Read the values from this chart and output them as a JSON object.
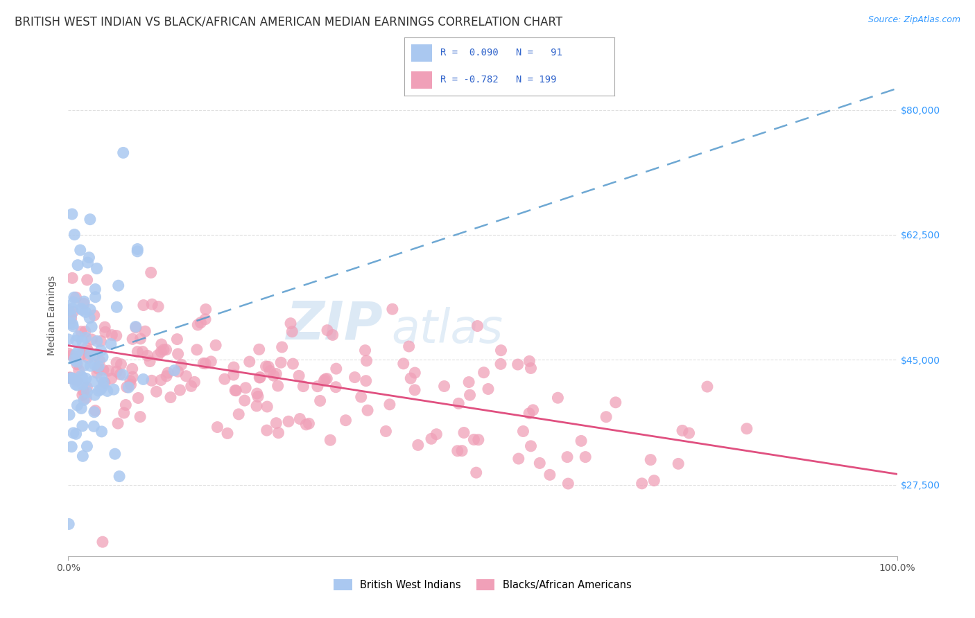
{
  "title": "BRITISH WEST INDIAN VS BLACK/AFRICAN AMERICAN MEDIAN EARNINGS CORRELATION CHART",
  "source": "Source: ZipAtlas.com",
  "ylabel": "Median Earnings",
  "xlim": [
    0,
    1
  ],
  "ylim": [
    17500,
    85000
  ],
  "yticks": [
    27500,
    45000,
    62500,
    80000
  ],
  "ytick_labels": [
    "$27,500",
    "$45,000",
    "$62,500",
    "$80,000"
  ],
  "xtick_labels": [
    "0.0%",
    "100.0%"
  ],
  "legend_label_blue": "British West Indians",
  "legend_label_pink": "Blacks/African Americans",
  "watermark_zip": "ZIP",
  "watermark_atlas": "atlas",
  "blue_R": 0.09,
  "blue_N": 91,
  "pink_R": -0.782,
  "pink_N": 199,
  "blue_scatter_color": "#aac8f0",
  "pink_scatter_color": "#f0a0b8",
  "blue_line_color": "#5599cc",
  "pink_line_color": "#e05080",
  "title_fontsize": 12,
  "source_fontsize": 9,
  "axis_label_fontsize": 10,
  "tick_fontsize": 10,
  "blue_line_x0": 0.0,
  "blue_line_y0": 44500,
  "blue_line_x1": 1.0,
  "blue_line_y1": 83000,
  "pink_line_x0": 0.0,
  "pink_line_y0": 47000,
  "pink_line_x1": 1.0,
  "pink_line_y1": 29000,
  "background_color": "#ffffff",
  "grid_color": "#cccccc"
}
